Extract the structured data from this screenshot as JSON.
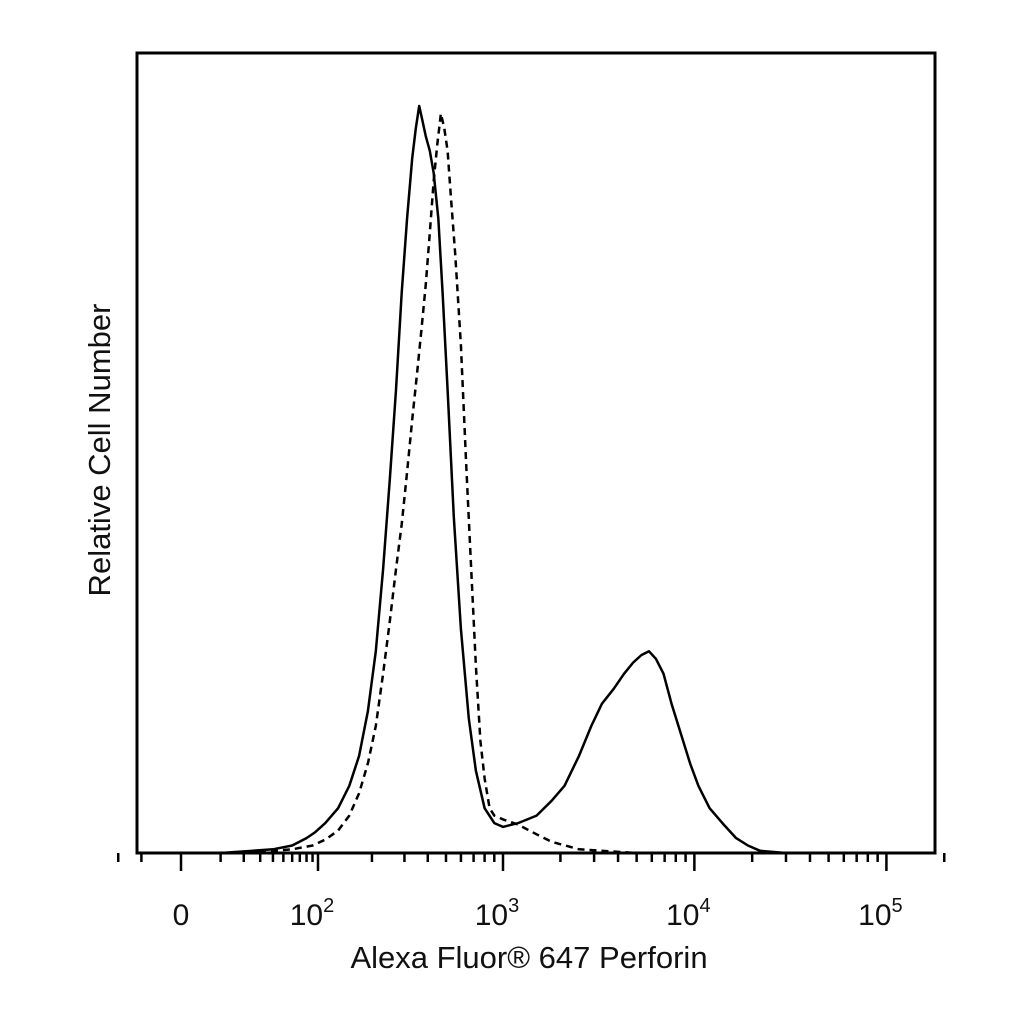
{
  "chart_data": {
    "type": "line",
    "xlabel": "Alexa Fluor® 647 Perforin",
    "ylabel": "Relative Cell Number",
    "x_scale": "biexponential",
    "xlim": [
      -20,
      250000
    ],
    "ylim": [
      0,
      100
    ],
    "grid": false,
    "legend": "none",
    "x_ticks": [
      {
        "value": 0,
        "base": "0",
        "exp": ""
      },
      {
        "value": 100,
        "base": "10",
        "exp": "2"
      },
      {
        "value": 1000,
        "base": "10",
        "exp": "3"
      },
      {
        "value": 10000,
        "base": "10",
        "exp": "4"
      },
      {
        "value": 100000,
        "base": "10",
        "exp": "5"
      }
    ],
    "series": [
      {
        "style": "solid",
        "color": "#000000",
        "x": [
          -20,
          10,
          40,
          60,
          80,
          95,
          110,
          130,
          150,
          170,
          190,
          210,
          230,
          250,
          270,
          290,
          310,
          330,
          345,
          360,
          375,
          390,
          410,
          430,
          455,
          480,
          510,
          550,
          600,
          660,
          720,
          800,
          900,
          1000,
          1200,
          1500,
          1800,
          2100,
          2500,
          2900,
          3300,
          3800,
          4300,
          4800,
          5300,
          5800,
          6300,
          6900,
          7600,
          8500,
          9500,
          10500,
          12000,
          14000,
          16500,
          19000,
          22000,
          30000,
          60000,
          100000,
          250000
        ],
        "y": [
          0,
          0,
          0.5,
          1,
          2,
          2.8,
          4,
          6,
          9,
          13,
          19,
          27,
          38,
          50,
          62,
          75,
          85,
          93,
          97,
          100,
          98,
          96,
          94,
          91,
          85,
          75,
          62,
          45,
          30,
          18,
          11,
          6,
          4,
          3.5,
          4,
          5,
          7,
          9,
          13,
          17,
          20,
          22,
          24,
          25.5,
          26.5,
          27,
          26,
          24,
          20,
          16,
          12,
          9,
          6,
          4,
          2,
          1,
          0.3,
          0,
          0,
          0,
          0
        ]
      },
      {
        "style": "dashed",
        "color": "#000000",
        "x": [
          -20,
          20,
          60,
          90,
          110,
          130,
          150,
          170,
          190,
          210,
          230,
          250,
          270,
          290,
          310,
          330,
          350,
          370,
          390,
          410,
          430,
          450,
          470,
          490,
          510,
          530,
          560,
          600,
          640,
          680,
          720,
          760,
          800,
          850,
          900,
          1000,
          1200,
          1500,
          1800,
          2500,
          5000,
          100000,
          250000
        ],
        "y": [
          0,
          0,
          0.5,
          1,
          1.8,
          3,
          5,
          8,
          12,
          17,
          24,
          31,
          38,
          44,
          51,
          58,
          64,
          70,
          76,
          83,
          90,
          95,
          99,
          97,
          94,
          88,
          80,
          68,
          52,
          38,
          25,
          15,
          10,
          6,
          5,
          4.5,
          3.8,
          2.5,
          1.5,
          0.5,
          0,
          0,
          0
        ]
      }
    ]
  }
}
